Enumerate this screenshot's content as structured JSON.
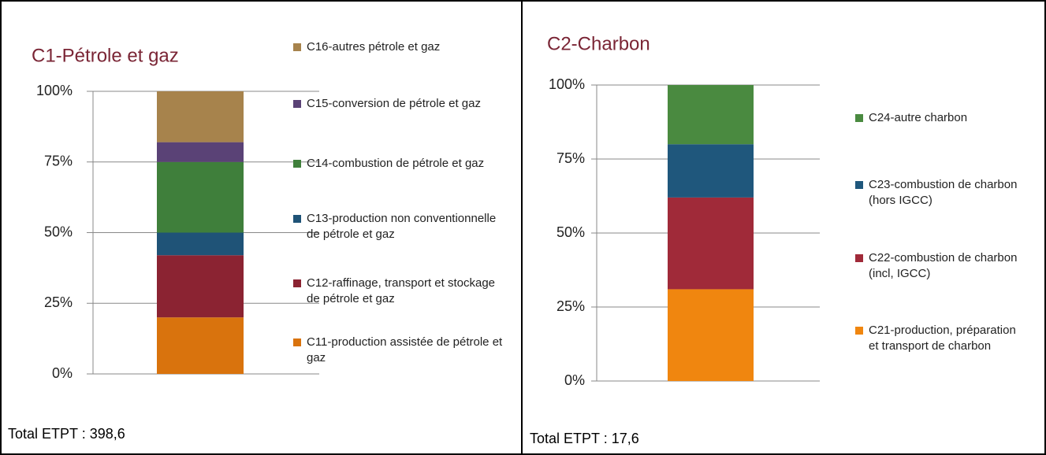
{
  "chart_data": [
    {
      "type": "bar",
      "stacked": true,
      "title": "C1-Pétrole et gaz",
      "note": "Total ETPT : 398,6",
      "categories": [
        null
      ],
      "series": [
        {
          "name": "C11-production assistée de pétrole et gaz",
          "color": "#d9730d",
          "values": [
            20
          ]
        },
        {
          "name": "C12-raffinage, transport et stockage de pétrole et gaz",
          "color": "#8b2332",
          "values": [
            22
          ]
        },
        {
          "name": "C13-production non conventionnelle de pétrole et gaz",
          "color": "#1f5377",
          "values": [
            8
          ]
        },
        {
          "name": "C14-combustion de pétrole et gaz",
          "color": "#3f7f3b",
          "values": [
            25
          ]
        },
        {
          "name": "C15-conversion de pétrole et gaz",
          "color": "#5a4276",
          "values": [
            7
          ]
        },
        {
          "name": "C16-autres pétrole et gaz",
          "color": "#a7834c",
          "values": [
            18
          ]
        }
      ],
      "ylim": [
        0,
        100
      ],
      "yticks": [
        {
          "value": 0,
          "label": "0%"
        },
        {
          "value": 25,
          "label": "25%"
        },
        {
          "value": 50,
          "label": "50%"
        },
        {
          "value": 75,
          "label": "75%"
        },
        {
          "value": 100,
          "label": "100%"
        }
      ],
      "grid": true
    },
    {
      "type": "bar",
      "stacked": true,
      "title": "C2-Charbon",
      "note": "Total ETPT : 17,6",
      "categories": [
        null
      ],
      "series": [
        {
          "name": "C21-production, préparation et transport de charbon",
          "color": "#f0860f",
          "values": [
            31
          ]
        },
        {
          "name": "C22-combustion de charbon (incl, IGCC)",
          "color": "#a02a39",
          "values": [
            31
          ]
        },
        {
          "name": "C23-combustion de charbon (hors IGCC)",
          "color": "#1f577c",
          "values": [
            18
          ]
        },
        {
          "name": "C24-autre charbon",
          "color": "#4a8a40",
          "values": [
            20
          ]
        }
      ],
      "ylim": [
        0,
        100
      ],
      "yticks": [
        {
          "value": 0,
          "label": "0%"
        },
        {
          "value": 25,
          "label": "25%"
        },
        {
          "value": 50,
          "label": "50%"
        },
        {
          "value": 75,
          "label": "75%"
        },
        {
          "value": 100,
          "label": "100%"
        }
      ],
      "grid": true
    }
  ]
}
